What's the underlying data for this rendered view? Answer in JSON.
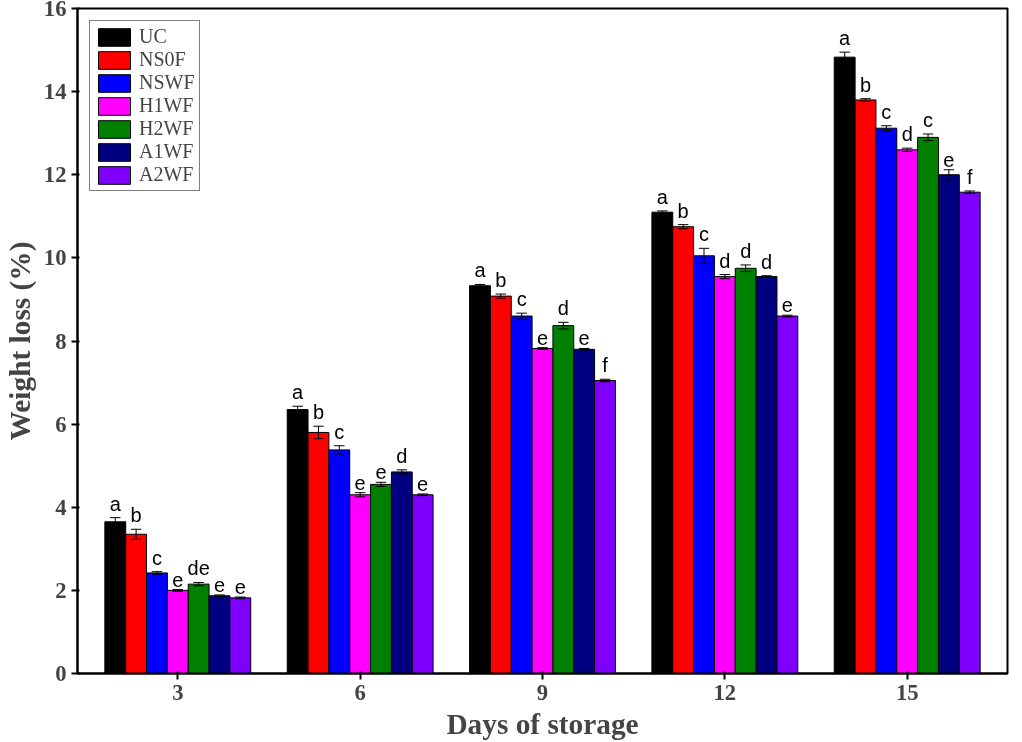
{
  "chart_data": {
    "type": "bar",
    "xlabel": "Days of storage",
    "ylabel": "Weight loss (%)",
    "categories": [
      "3",
      "6",
      "9",
      "12",
      "15"
    ],
    "ylim": [
      0,
      16
    ],
    "yticks": [
      0,
      2,
      4,
      6,
      8,
      10,
      12,
      14,
      16
    ],
    "grid": false,
    "legend": "top left",
    "series": [
      {
        "name": "UC",
        "color": "#000000",
        "values": [
          3.65,
          6.35,
          9.33,
          11.1,
          14.83
        ],
        "errors": [
          0.1,
          0.08,
          0.03,
          0.03,
          0.12
        ],
        "value_labels": [
          "a",
          "a",
          "a",
          "a",
          "a"
        ]
      },
      {
        "name": "NS0F",
        "color": "#ff0000",
        "values": [
          3.35,
          5.8,
          9.08,
          10.75,
          13.8
        ],
        "errors": [
          0.12,
          0.15,
          0.05,
          0.05,
          0.03
        ],
        "value_labels": [
          "b",
          "b",
          "b",
          "b",
          "b"
        ]
      },
      {
        "name": "NSWF",
        "color": "#0000ff",
        "values": [
          2.42,
          5.38,
          8.6,
          10.05,
          13.12
        ],
        "errors": [
          0.03,
          0.1,
          0.07,
          0.18,
          0.06
        ],
        "value_labels": [
          "c",
          "c",
          "c",
          "c",
          "c"
        ]
      },
      {
        "name": "H1WF",
        "color": "#ff00ff",
        "values": [
          2.0,
          4.3,
          7.82,
          9.55,
          12.6
        ],
        "errors": [
          0.02,
          0.05,
          0.02,
          0.05,
          0.04
        ],
        "value_labels": [
          "e",
          "e",
          "e",
          "d",
          "d"
        ]
      },
      {
        "name": "H2WF",
        "color": "#008000",
        "values": [
          2.15,
          4.55,
          8.37,
          9.75,
          12.9
        ],
        "errors": [
          0.04,
          0.05,
          0.08,
          0.08,
          0.08
        ],
        "value_labels": [
          "de",
          "e",
          "d",
          "d",
          "c"
        ]
      },
      {
        "name": "A1WF",
        "color": "#000080",
        "values": [
          1.87,
          4.85,
          7.8,
          9.55,
          12.0
        ],
        "errors": [
          0.02,
          0.05,
          0.02,
          0.02,
          0.12
        ],
        "value_labels": [
          "e",
          "d",
          "e",
          "d",
          "e"
        ]
      },
      {
        "name": "A2WF",
        "color": "#8000ff",
        "values": [
          1.82,
          4.3,
          7.05,
          8.6,
          11.58
        ],
        "errors": [
          0.02,
          0.02,
          0.03,
          0.02,
          0.03
        ],
        "value_labels": [
          "e",
          "e",
          "f",
          "e",
          "f"
        ]
      }
    ]
  }
}
